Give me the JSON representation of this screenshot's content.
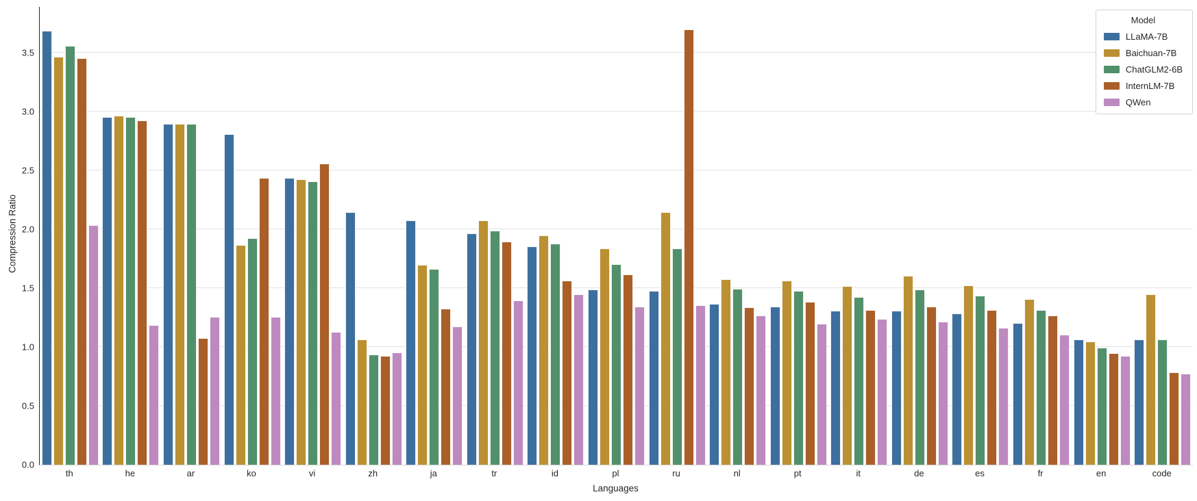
{
  "chart_data": {
    "type": "bar",
    "title": "",
    "xlabel": "Languages",
    "ylabel": "Compression Ratio",
    "legend_title": "Model",
    "legend_position": "upper right",
    "grid": true,
    "ylim": [
      0,
      3.89
    ],
    "yticks": [
      0.0,
      0.5,
      1.0,
      1.5,
      2.0,
      2.5,
      3.0,
      3.5
    ],
    "categories": [
      "th",
      "he",
      "ar",
      "ko",
      "vi",
      "zh",
      "ja",
      "tr",
      "id",
      "pl",
      "ru",
      "nl",
      "pt",
      "it",
      "de",
      "es",
      "fr",
      "en",
      "code"
    ],
    "series": [
      {
        "name": "LLaMA-7B",
        "color": "#3D6F9E",
        "values": [
          3.68,
          2.95,
          2.89,
          2.8,
          2.43,
          2.14,
          2.07,
          1.96,
          1.85,
          1.48,
          1.47,
          1.36,
          1.34,
          1.3,
          1.3,
          1.28,
          1.2,
          1.06,
          1.06
        ]
      },
      {
        "name": "Baichuan-7B",
        "color": "#BB9033",
        "values": [
          3.46,
          2.96,
          2.89,
          1.86,
          2.42,
          1.06,
          1.69,
          2.07,
          1.94,
          1.83,
          2.14,
          1.57,
          1.56,
          1.51,
          1.6,
          1.52,
          1.4,
          1.04,
          1.44
        ]
      },
      {
        "name": "ChatGLM2-6B",
        "color": "#52906B",
        "values": [
          3.55,
          2.95,
          2.89,
          1.92,
          2.4,
          0.93,
          1.66,
          1.98,
          1.87,
          1.7,
          1.83,
          1.49,
          1.47,
          1.42,
          1.48,
          1.43,
          1.31,
          0.99,
          1.06
        ]
      },
      {
        "name": "InternLM-7B",
        "color": "#AA5F28",
        "values": [
          3.45,
          2.92,
          1.07,
          2.43,
          2.55,
          0.92,
          1.32,
          1.89,
          1.56,
          1.61,
          3.69,
          1.33,
          1.38,
          1.31,
          1.34,
          1.31,
          1.26,
          0.94,
          0.78
        ]
      },
      {
        "name": "QWen",
        "color": "#BD89BF",
        "values": [
          2.03,
          1.18,
          1.25,
          1.25,
          1.12,
          0.95,
          1.17,
          1.39,
          1.44,
          1.34,
          1.35,
          1.26,
          1.19,
          1.23,
          1.21,
          1.16,
          1.1,
          0.92,
          0.77
        ]
      }
    ]
  }
}
